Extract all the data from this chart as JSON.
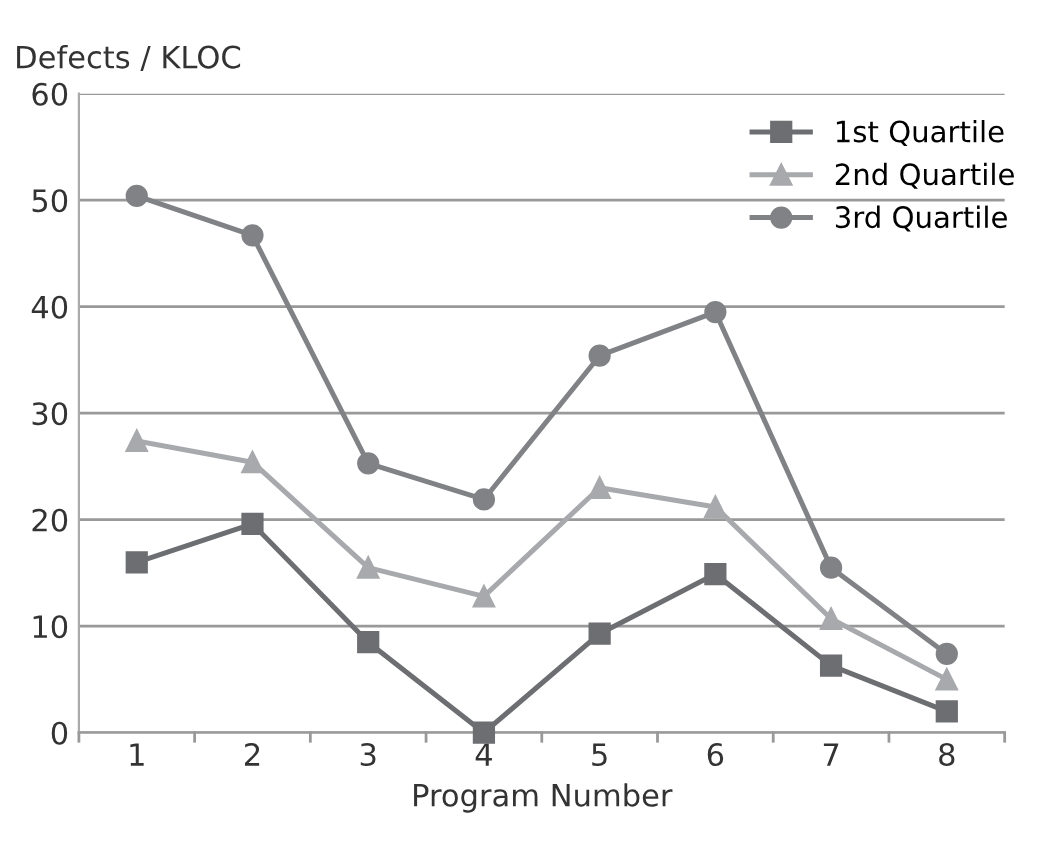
{
  "chart_data": {
    "type": "line",
    "ylabel": "Defects / KLOC",
    "xlabel": "Program Number",
    "categories": [
      "1",
      "2",
      "3",
      "4",
      "5",
      "6",
      "7",
      "8"
    ],
    "series": [
      {
        "name": "1st Quartile",
        "color": "#6d6e71",
        "marker": "square",
        "values": [
          16.0,
          19.6,
          8.5,
          0,
          9.3,
          14.9,
          6.3,
          2.0
        ]
      },
      {
        "name": "2nd Quartile",
        "color": "#a7a9ac",
        "marker": "triangle",
        "values": [
          27.4,
          25.4,
          15.5,
          12.8,
          23.0,
          21.2,
          10.7,
          5.0
        ]
      },
      {
        "name": "3rd Quartile",
        "color": "#808285",
        "marker": "circle",
        "values": [
          50.4,
          46.7,
          25.3,
          21.9,
          35.4,
          39.5,
          15.5,
          7.4
        ]
      }
    ],
    "ylim": [
      0,
      60
    ],
    "yticks": [
      0,
      10,
      20,
      30,
      40,
      50,
      60
    ],
    "grid": "y",
    "legend": "top right",
    "line_style": "solid"
  }
}
